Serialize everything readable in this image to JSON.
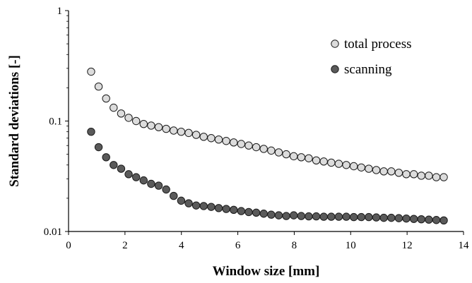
{
  "chart_data": {
    "type": "scatter",
    "xlabel": "Window size [mm]",
    "ylabel": "Standard deviations [-]",
    "xlim": [
      0,
      14
    ],
    "ylim": [
      0.01,
      1
    ],
    "yscale": "log",
    "x_ticks": [
      "0",
      "2",
      "4",
      "6",
      "8",
      "10",
      "12",
      "14"
    ],
    "y_ticks": [
      "0.01",
      "0.1",
      "1"
    ],
    "legend_position": "top-right",
    "grid": false,
    "series": [
      {
        "name": "total process",
        "color": "#dcdcdc",
        "x": [
          0.8,
          1.066,
          1.332,
          1.598,
          1.864,
          2.13,
          2.396,
          2.662,
          2.928,
          3.194,
          3.46,
          3.726,
          3.992,
          4.258,
          4.524,
          4.79,
          5.056,
          5.322,
          5.588,
          5.854,
          6.12,
          6.386,
          6.652,
          6.918,
          7.184,
          7.45,
          7.716,
          7.982,
          8.248,
          8.514,
          8.78,
          9.046,
          9.312,
          9.578,
          9.844,
          10.11,
          10.376,
          10.642,
          10.908,
          11.174,
          11.44,
          11.706,
          11.972,
          12.238,
          12.504,
          12.77,
          13.036,
          13.3
        ],
        "y": [
          0.28,
          0.205,
          0.16,
          0.132,
          0.117,
          0.107,
          0.1,
          0.094,
          0.091,
          0.088,
          0.085,
          0.082,
          0.08,
          0.078,
          0.075,
          0.072,
          0.07,
          0.068,
          0.066,
          0.064,
          0.062,
          0.06,
          0.058,
          0.056,
          0.054,
          0.052,
          0.05,
          0.048,
          0.047,
          0.046,
          0.044,
          0.043,
          0.042,
          0.041,
          0.04,
          0.039,
          0.038,
          0.037,
          0.036,
          0.035,
          0.035,
          0.034,
          0.033,
          0.033,
          0.032,
          0.032,
          0.031,
          0.031
        ]
      },
      {
        "name": "scanning",
        "color": "#5a5a5a",
        "x": [
          0.8,
          1.066,
          1.332,
          1.598,
          1.864,
          2.13,
          2.396,
          2.662,
          2.928,
          3.194,
          3.46,
          3.726,
          3.992,
          4.258,
          4.524,
          4.79,
          5.056,
          5.322,
          5.588,
          5.854,
          6.12,
          6.386,
          6.652,
          6.918,
          7.184,
          7.45,
          7.716,
          7.982,
          8.248,
          8.514,
          8.78,
          9.046,
          9.312,
          9.578,
          9.844,
          10.11,
          10.376,
          10.642,
          10.908,
          11.174,
          11.44,
          11.706,
          11.972,
          12.238,
          12.504,
          12.77,
          13.036,
          13.3
        ],
        "y": [
          0.08,
          0.058,
          0.047,
          0.04,
          0.037,
          0.033,
          0.031,
          0.029,
          0.027,
          0.026,
          0.024,
          0.021,
          0.019,
          0.018,
          0.0172,
          0.017,
          0.0167,
          0.0163,
          0.016,
          0.0157,
          0.0153,
          0.015,
          0.0148,
          0.0145,
          0.0142,
          0.014,
          0.0138,
          0.014,
          0.0138,
          0.0137,
          0.0137,
          0.0136,
          0.0136,
          0.0136,
          0.0136,
          0.0135,
          0.0135,
          0.0135,
          0.0134,
          0.0133,
          0.0133,
          0.0132,
          0.0131,
          0.013,
          0.0129,
          0.0128,
          0.0127,
          0.0126
        ]
      }
    ]
  }
}
